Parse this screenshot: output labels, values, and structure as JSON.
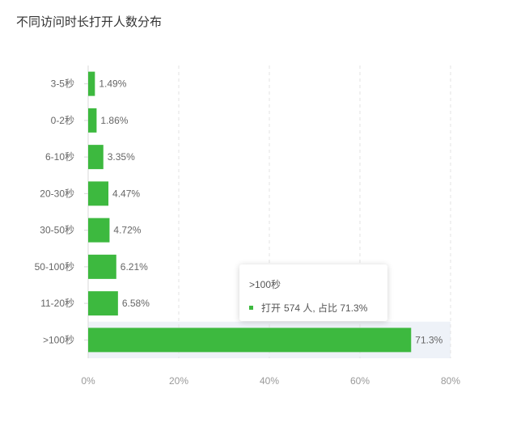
{
  "title": "不同访问时长打开人数分布",
  "colors": {
    "bar": "#3db93f",
    "highlight": "#eef2f8",
    "axis": "#d9d9d9",
    "grid": "#e3e3e3",
    "text": "#666666",
    "tick": "#999999"
  },
  "chart_data": {
    "type": "bar",
    "orientation": "horizontal",
    "categories": [
      "3-5秒",
      "0-2秒",
      "6-10秒",
      "20-30秒",
      "30-50秒",
      "50-100秒",
      "11-20秒",
      ">100秒"
    ],
    "values": [
      1.49,
      1.86,
      3.35,
      4.47,
      4.72,
      6.21,
      6.58,
      71.3
    ],
    "data_labels": [
      "1.49%",
      "1.86%",
      "3.35%",
      "4.47%",
      "4.72%",
      "6.21%",
      "6.58%",
      "71.3%"
    ],
    "xlim": [
      0,
      80
    ],
    "x_ticks": [
      "0%",
      "20%",
      "40%",
      "60%",
      "80%"
    ],
    "grid": "vertical-dashed",
    "highlighted_category": ">100秒"
  },
  "tooltip": {
    "title": ">100秒",
    "series": "打开",
    "value": "574 人, 占比 71.3%"
  }
}
